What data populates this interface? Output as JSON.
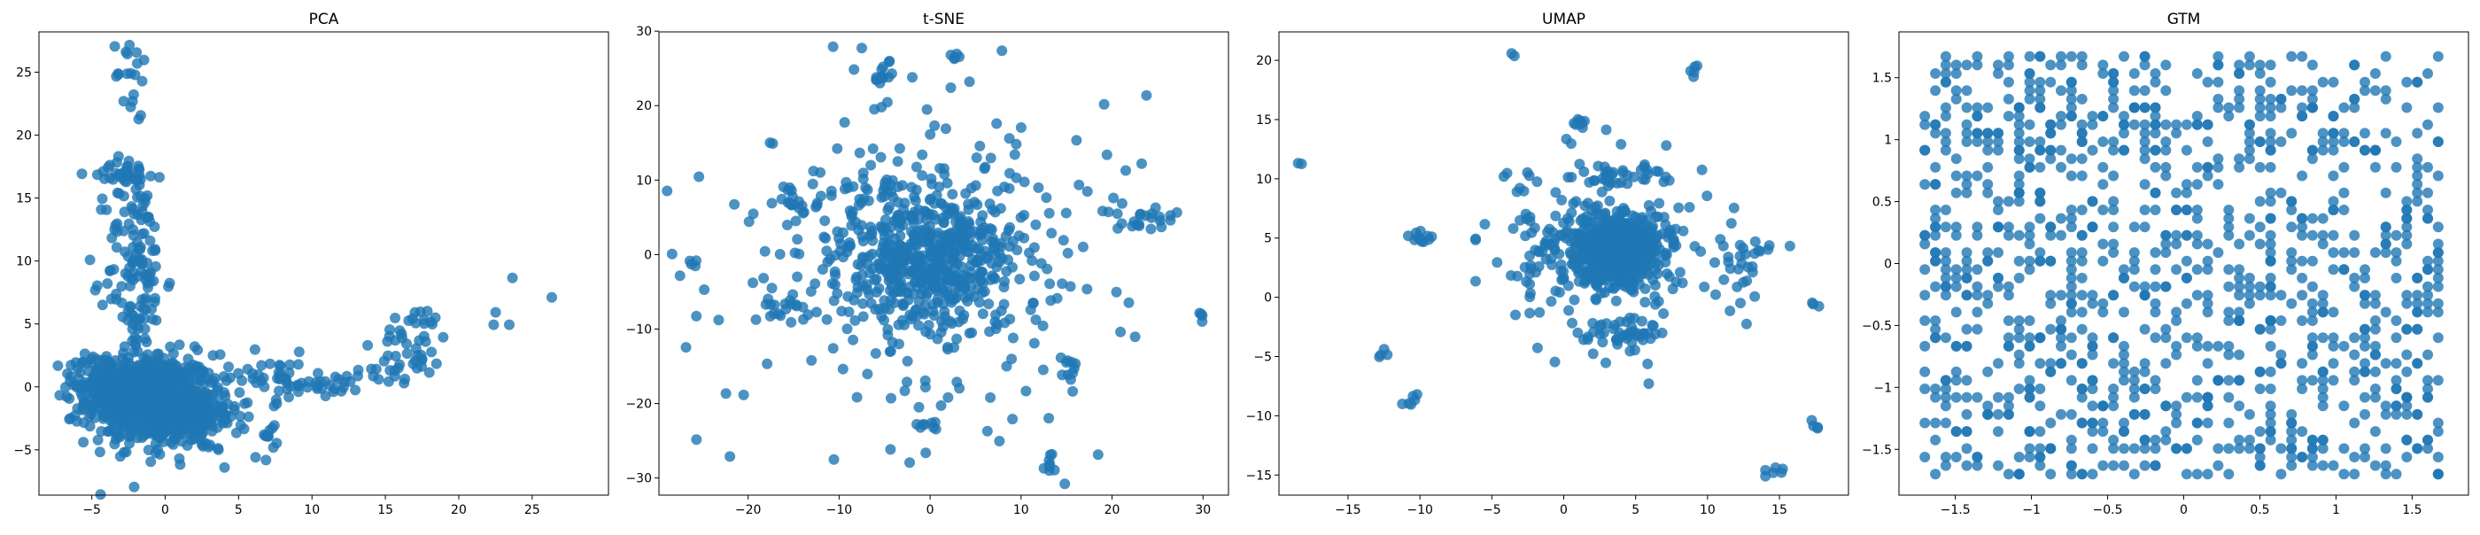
{
  "chart_data": [
    {
      "type": "scatter",
      "title": "PCA",
      "xlim": [
        -8.6,
        30.2
      ],
      "ylim": [
        -8.6,
        28.2
      ],
      "xticks": [
        -5,
        0,
        5,
        10,
        15,
        20,
        25
      ],
      "yticks": [
        -5,
        0,
        5,
        10,
        15,
        20,
        25
      ],
      "color": "#1f77b4",
      "series": [
        {
          "clusters": [
            {
              "cx": -1,
              "cy": -1,
              "sx": 2.2,
              "sy": 1.8,
              "n": 650
            },
            {
              "cx": 2,
              "cy": -2.5,
              "sx": 1.5,
              "sy": 1.3,
              "n": 140
            },
            {
              "cx": -4,
              "cy": 0.5,
              "sx": 1.3,
              "sy": 1.2,
              "n": 120
            },
            {
              "cx": -2,
              "cy": 9,
              "sx": 1,
              "sy": 4.5,
              "n": 140
            },
            {
              "cx": -2.5,
              "cy": 17,
              "sx": 1.3,
              "sy": 0.4,
              "n": 30
            },
            {
              "cx": -2.5,
              "cy": 25.5,
              "sx": 0.8,
              "sy": 1,
              "n": 14
            },
            {
              "cx": -2.2,
              "cy": 22,
              "sx": 0.4,
              "sy": 1,
              "n": 6
            },
            {
              "cx": 17,
              "cy": 3.5,
              "sx": 1.2,
              "sy": 1.5,
              "n": 45
            },
            {
              "cx": 11,
              "cy": 0.3,
              "sx": 1.2,
              "sy": 0.5,
              "n": 25
            },
            {
              "cx": 7,
              "cy": 0.8,
              "sx": 1.5,
              "sy": 1,
              "n": 35
            },
            {
              "cx": 7,
              "cy": -4,
              "sx": 1,
              "sy": 0.8,
              "n": 12
            },
            {
              "cx": 14,
              "cy": 1,
              "sx": 1,
              "sy": 0.5,
              "n": 12
            },
            {
              "cx": 24,
              "cy": 7,
              "sx": 2,
              "sy": 1,
              "n": 5
            }
          ]
        }
      ]
    },
    {
      "type": "scatter",
      "title": "t-SNE",
      "xlim": [
        -29.8,
        32.8
      ],
      "ylim": [
        -32.3,
        29.9
      ],
      "xticks": [
        -20,
        -10,
        0,
        10,
        20,
        30
      ],
      "yticks": [
        -30,
        -20,
        -10,
        0,
        10,
        20,
        30
      ],
      "color": "#1f77b4",
      "series": [
        {
          "clusters": [
            {
              "cx": 0,
              "cy": 0,
              "sx": 5,
              "sy": 5,
              "n": 500
            },
            {
              "cx": 0,
              "cy": 0,
              "sx": 12,
              "sy": 12,
              "n": 260
            },
            {
              "cx": -15,
              "cy": 7,
              "sx": 1.2,
              "sy": 0.5,
              "n": 12
            },
            {
              "cx": -16,
              "cy": -7,
              "sx": 1.5,
              "sy": 0.7,
              "n": 15
            },
            {
              "cx": 23,
              "cy": 5,
              "sx": 2,
              "sy": 1,
              "n": 22
            },
            {
              "cx": -5,
              "cy": 24,
              "sx": 0.7,
              "sy": 1.5,
              "n": 14
            },
            {
              "cx": 13,
              "cy": -28,
              "sx": 0.4,
              "sy": 0.8,
              "n": 8
            },
            {
              "cx": 15.5,
              "cy": -16,
              "sx": 0.5,
              "sy": 1.5,
              "n": 10
            },
            {
              "cx": 30,
              "cy": -8.5,
              "sx": 0.3,
              "sy": 0.3,
              "n": 4
            },
            {
              "cx": -26,
              "cy": -1,
              "sx": 0.3,
              "sy": 0.3,
              "n": 4
            },
            {
              "cx": 3,
              "cy": 26.5,
              "sx": 0.6,
              "sy": 0.3,
              "n": 5
            },
            {
              "cx": 0,
              "cy": -23,
              "sx": 1,
              "sy": 0.4,
              "n": 8
            }
          ]
        }
      ]
    },
    {
      "type": "scatter",
      "title": "UMAP",
      "xlim": [
        -19.8,
        19.8
      ],
      "ylim": [
        -16.7,
        22.4
      ],
      "xticks": [
        -15,
        -10,
        -5,
        0,
        5,
        10,
        15
      ],
      "yticks": [
        -15,
        -10,
        -5,
        0,
        5,
        10,
        15,
        20
      ],
      "color": "#1f77b4",
      "series": [
        {
          "clusters": [
            {
              "cx": 3.5,
              "cy": 4,
              "sx": 1.6,
              "sy": 1.5,
              "n": 500
            },
            {
              "cx": 3.5,
              "cy": 4,
              "sx": 4,
              "sy": 4,
              "n": 200
            },
            {
              "cx": 4,
              "cy": -3,
              "sx": 1.5,
              "sy": 0.6,
              "n": 40
            },
            {
              "cx": 4,
              "cy": 10.5,
              "sx": 1.5,
              "sy": 0.4,
              "n": 30
            },
            {
              "cx": -10,
              "cy": 5,
              "sx": 0.4,
              "sy": 0.3,
              "n": 12
            },
            {
              "cx": -10.5,
              "cy": -8.5,
              "sx": 0.3,
              "sy": 0.4,
              "n": 6
            },
            {
              "cx": 14.5,
              "cy": -15,
              "sx": 0.4,
              "sy": 0.3,
              "n": 6
            },
            {
              "cx": 17.5,
              "cy": -11,
              "sx": 0.2,
              "sy": 0.3,
              "n": 4
            },
            {
              "cx": 9,
              "cy": 19,
              "sx": 0.3,
              "sy": 0.3,
              "n": 5
            },
            {
              "cx": 1,
              "cy": 15,
              "sx": 0.3,
              "sy": 0.6,
              "n": 8
            },
            {
              "cx": -18.5,
              "cy": 11.3,
              "sx": 0.1,
              "sy": 0.1,
              "n": 2
            },
            {
              "cx": -3.5,
              "cy": 20.5,
              "sx": 0.1,
              "sy": 0.1,
              "n": 2
            },
            {
              "cx": 17.5,
              "cy": -0.5,
              "sx": 0.2,
              "sy": 0.2,
              "n": 3
            },
            {
              "cx": -12.5,
              "cy": -5,
              "sx": 0.3,
              "sy": 0.3,
              "n": 4
            },
            {
              "cx": 13,
              "cy": 4,
              "sx": 0.6,
              "sy": 0.3,
              "n": 8
            },
            {
              "cx": -3,
              "cy": 10,
              "sx": 0.7,
              "sy": 0.6,
              "n": 8
            },
            {
              "cx": -1.5,
              "cy": 3,
              "sx": 1,
              "sy": 1.5,
              "n": 20
            },
            {
              "cx": 12,
              "cy": 1.5,
              "sx": 1,
              "sy": 3,
              "n": 14
            }
          ]
        }
      ]
    },
    {
      "type": "scatter",
      "title": "GTM",
      "xlim": [
        -1.87,
        1.87
      ],
      "ylim": [
        -1.87,
        1.87
      ],
      "xticks": [
        -1.5,
        -1.0,
        -0.5,
        0.0,
        0.5,
        1.0,
        1.5
      ],
      "yticks": [
        -1.5,
        -1.0,
        -0.5,
        0.0,
        0.5,
        1.0,
        1.5
      ],
      "color": "#1f77b4",
      "series": [
        {
          "grid": {
            "min": -1.7,
            "max": 1.7,
            "step": 0.0688,
            "n": 1100
          }
        }
      ]
    }
  ]
}
